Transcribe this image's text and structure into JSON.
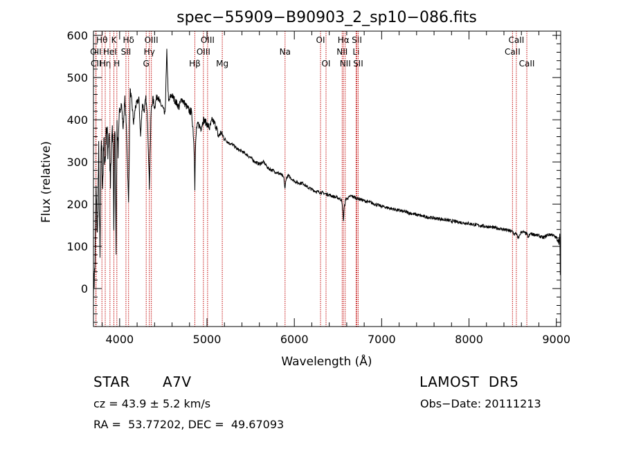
{
  "chart_data": {
    "type": "line",
    "title": "spec−55909−B90903_2_sp10−086.fits",
    "xlabel": "Wavelength (Å)",
    "ylabel": "Flux (relative)",
    "xlim": [
      3700,
      9050
    ],
    "ylim": [
      -90,
      610
    ],
    "xticks": [
      4000,
      5000,
      6000,
      7000,
      8000,
      9000
    ],
    "yticks": [
      0,
      100,
      200,
      300,
      400,
      500,
      600
    ],
    "grid": false,
    "line_color": "#000000",
    "marker_color": "#c00000",
    "series": [
      {
        "x": [
          3700,
          3715,
          3730,
          3745,
          3760,
          3775,
          3790,
          3805,
          3820,
          3835,
          3850,
          3865,
          3880,
          3895,
          3910,
          3925,
          3933,
          3945,
          3960,
          3970,
          3985,
          4000,
          4020,
          4040,
          4060,
          4080,
          4102,
          4120,
          4140,
          4160,
          4180,
          4200,
          4220,
          4240,
          4260,
          4280,
          4300,
          4320,
          4340,
          4360,
          4380,
          4400,
          4430,
          4460,
          4490,
          4520,
          4540,
          4560,
          4590,
          4620,
          4650,
          4680,
          4710,
          4740,
          4770,
          4800,
          4820,
          4840,
          4855,
          4861,
          4868,
          4880,
          4900,
          4930,
          4960,
          5000,
          5030,
          5060,
          5090,
          5110,
          5130,
          5160,
          5200,
          5250,
          5300,
          5350,
          5400,
          5450,
          5500,
          5550,
          5600,
          5650,
          5700,
          5750,
          5800,
          5850,
          5880,
          5893,
          5905,
          5930,
          5960,
          6000,
          6050,
          6100,
          6150,
          6200,
          6250,
          6300,
          6350,
          6400,
          6450,
          6500,
          6540,
          6555,
          6563,
          6570,
          6590,
          6620,
          6650,
          6700,
          6750,
          6800,
          6850,
          6900,
          6950,
          7000,
          7100,
          7200,
          7300,
          7400,
          7500,
          7600,
          7700,
          7800,
          7900,
          8000,
          8100,
          8200,
          8300,
          8400,
          8498,
          8520,
          8542,
          8560,
          8600,
          8662,
          8680,
          8700,
          8750,
          8800,
          8850,
          8900,
          8950,
          9000,
          9020,
          9030,
          9040,
          9045,
          9050
        ],
        "y": [
          0,
          40,
          230,
          120,
          320,
          60,
          360,
          250,
          340,
          300,
          390,
          330,
          380,
          240,
          360,
          350,
          150,
          400,
          110,
          390,
          320,
          420,
          440,
          380,
          450,
          370,
          200,
          470,
          440,
          390,
          430,
          440,
          450,
          360,
          440,
          420,
          450,
          400,
          240,
          420,
          450,
          430,
          460,
          440,
          430,
          410,
          560,
          440,
          460,
          450,
          440,
          430,
          450,
          440,
          430,
          420,
          420,
          380,
          320,
          240,
          330,
          380,
          390,
          380,
          400,
          390,
          380,
          400,
          390,
          380,
          360,
          370,
          355,
          345,
          340,
          330,
          325,
          318,
          310,
          300,
          295,
          300,
          285,
          280,
          275,
          270,
          262,
          235,
          260,
          268,
          262,
          255,
          250,
          250,
          240,
          235,
          230,
          228,
          225,
          222,
          218,
          215,
          210,
          185,
          160,
          190,
          212,
          215,
          220,
          215,
          212,
          208,
          205,
          202,
          198,
          195,
          190,
          185,
          180,
          175,
          170,
          167,
          164,
          160,
          157,
          154,
          150,
          147,
          144,
          140,
          135,
          128,
          132,
          118,
          135,
          130,
          120,
          130,
          128,
          125,
          120,
          127,
          128,
          120,
          115,
          110,
          125,
          30,
          130
        ]
      }
    ],
    "line_markers": [
      {
        "label": "CII",
        "x": 3730,
        "row": 2
      },
      {
        "label": "OII",
        "x": 3727,
        "row": 1
      },
      {
        "label": "Hθ",
        "x": 3797,
        "row": 0
      },
      {
        "label": "Hη",
        "x": 3835,
        "row": 2
      },
      {
        "label": "HeI",
        "x": 3889,
        "row": 1
      },
      {
        "label": "K",
        "x": 3934,
        "row": 0
      },
      {
        "label": "H",
        "x": 3968,
        "row": 2
      },
      {
        "label": "SII",
        "x": 4072,
        "row": 1
      },
      {
        "label": "Hδ",
        "x": 4102,
        "row": 0
      },
      {
        "label": "G",
        "x": 4304,
        "row": 2
      },
      {
        "label": "Hγ",
        "x": 4340,
        "row": 1
      },
      {
        "label": "OIII",
        "x": 4363,
        "row": 0
      },
      {
        "label": "Hβ",
        "x": 4861,
        "row": 2
      },
      {
        "label": "OIII",
        "x": 4959,
        "row": 1
      },
      {
        "label": "OIII",
        "x": 5007,
        "row": 0
      },
      {
        "label": "Mg",
        "x": 5175,
        "row": 2
      },
      {
        "label": "Na",
        "x": 5894,
        "row": 1
      },
      {
        "label": "OI",
        "x": 6300,
        "row": 0
      },
      {
        "label": "OI",
        "x": 6363,
        "row": 2
      },
      {
        "label": "NII",
        "x": 6548,
        "row": 1
      },
      {
        "label": "Hα",
        "x": 6563,
        "row": 0
      },
      {
        "label": "NII",
        "x": 6583,
        "row": 2
      },
      {
        "label": "Li",
        "x": 6707,
        "row": 1
      },
      {
        "label": "SII",
        "x": 6716,
        "row": 0
      },
      {
        "label": "SII",
        "x": 6731,
        "row": 2
      },
      {
        "label": "CaII",
        "x": 8498,
        "row": 1
      },
      {
        "label": "CaII",
        "x": 8542,
        "row": 0
      },
      {
        "label": "CaII",
        "x": 8662,
        "row": 2
      }
    ]
  },
  "info": {
    "object_class": "STAR",
    "subclass": "A7V",
    "survey": "LAMOST  DR5",
    "cz": "cz = 43.9 ± 5.2 km/s",
    "obs_date": "Obs−Date: 20111213",
    "coords": "RA =  53.77202, DEC =  49.67093"
  }
}
